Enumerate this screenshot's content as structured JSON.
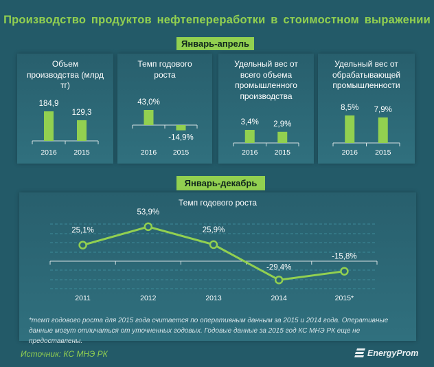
{
  "title": "Производство продуктов нефтепереработки в стоимостном выражении",
  "section1": "Январь-апрель",
  "section2": "Январь-декабрь",
  "colors": {
    "background": "#235a68",
    "accent": "#92d050"
  },
  "chart_data": [
    {
      "type": "bar",
      "title": "Объем производства (млрд тг)",
      "categories": [
        "2016",
        "2015"
      ],
      "values": [
        184.9,
        129.3
      ],
      "labels": [
        "184,9",
        "129,3"
      ]
    },
    {
      "type": "bar",
      "title": "Темп годового роста",
      "categories": [
        "2016",
        "2015"
      ],
      "values": [
        43.0,
        -14.9
      ],
      "labels": [
        "43,0%",
        "-14,9%"
      ]
    },
    {
      "type": "bar",
      "title": "Удельный вес от всего объема промышленного производства",
      "categories": [
        "2016",
        "2015"
      ],
      "values": [
        3.4,
        2.9
      ],
      "labels": [
        "3,4%",
        "2,9%"
      ]
    },
    {
      "type": "bar",
      "title": "Удельный вес от обрабатывающей промышленности",
      "categories": [
        "2016",
        "2015"
      ],
      "values": [
        8.5,
        7.9
      ],
      "labels": [
        "8,5%",
        "7,9%"
      ]
    },
    {
      "type": "line",
      "title": "Темп годового роста",
      "categories": [
        "2011",
        "2012",
        "2013",
        "2014",
        "2015*"
      ],
      "values": [
        25.1,
        53.9,
        25.9,
        -29.4,
        -15.8
      ],
      "labels": [
        "25,1%",
        "53,9%",
        "25,9%",
        "-29,4%",
        "-15,8%"
      ],
      "grid": true
    }
  ],
  "footnote": "*темп годового роста для 2015 года считается по оперативным данным за 2015 и 2014 года. Оперативные данные могут отличаться от уточненных годовых. Годовые данные за 2015 год КС МНЭ РК еще не предоставлены.",
  "source": "Источник: КС МНЭ РК",
  "logo": "EnergyProm"
}
